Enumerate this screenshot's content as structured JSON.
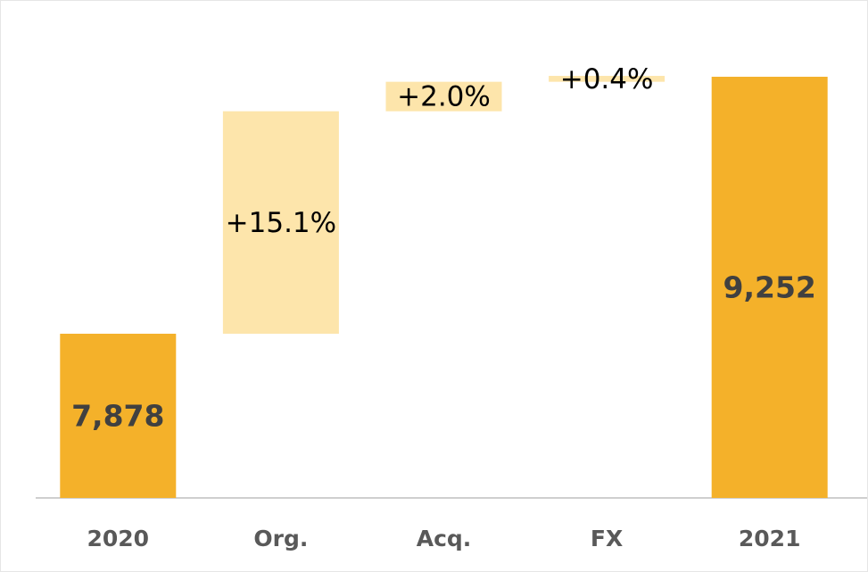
{
  "chart_data": {
    "type": "waterfall",
    "categories": [
      "2020",
      "Org.",
      "Acq.",
      "FX",
      "2021"
    ],
    "measure": [
      "absolute",
      "relative",
      "relative",
      "relative",
      "total"
    ],
    "values": [
      7878,
      15.1,
      2.0,
      0.4,
      9252
    ],
    "value_labels": [
      "7,878",
      "+15.1%",
      "+2.0%",
      "+0.4%",
      "9,252"
    ],
    "color": "#f4b12a",
    "increase_color": "#fde5ab",
    "ylim": [
      7000,
      9400
    ]
  }
}
